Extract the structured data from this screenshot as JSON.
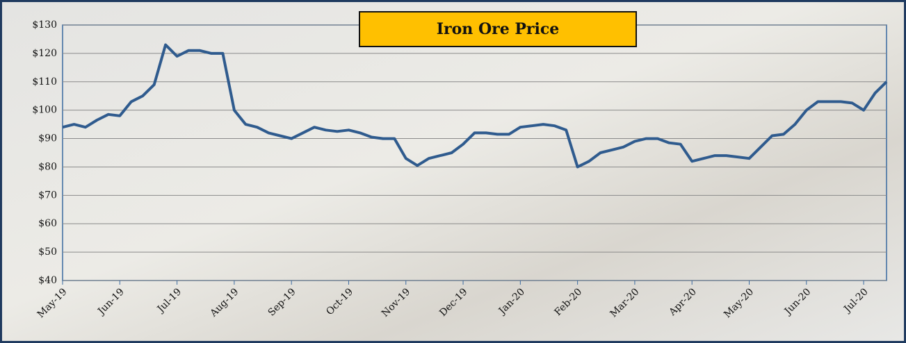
{
  "chart_data": {
    "type": "line",
    "title": "Iron Ore Price",
    "categories": [
      "May-19",
      null,
      null,
      null,
      null,
      "Jun-19",
      null,
      null,
      null,
      null,
      "Jul-19",
      null,
      null,
      null,
      null,
      "Aug-19",
      null,
      null,
      null,
      null,
      "Sep-19",
      null,
      null,
      null,
      null,
      "Oct-19",
      null,
      null,
      null,
      null,
      "Nov-19",
      null,
      null,
      null,
      null,
      "Dec-19",
      null,
      null,
      null,
      null,
      "Jan-20",
      null,
      null,
      null,
      null,
      "Feb-20",
      null,
      null,
      null,
      null,
      "Mar-20",
      null,
      null,
      null,
      null,
      "Apr-20",
      null,
      null,
      null,
      null,
      "May-20",
      null,
      null,
      null,
      null,
      "Jun-20",
      null,
      null,
      null,
      null,
      "Jul-20",
      null,
      null
    ],
    "series": [
      {
        "name": "Iron Ore Price",
        "color": "#2f5b8e",
        "values": [
          94,
          95,
          94,
          96.5,
          98.5,
          98,
          103,
          105,
          109,
          123,
          119,
          121,
          121,
          120,
          120,
          100,
          95,
          94,
          92,
          91,
          90,
          92,
          94,
          93,
          92.5,
          93,
          92,
          90.5,
          90,
          90,
          83,
          80.5,
          83,
          84,
          85,
          88,
          92,
          92,
          91.5,
          91.5,
          94,
          94.5,
          95,
          94.5,
          93,
          80,
          82,
          85,
          86,
          87,
          89,
          90,
          90,
          88.5,
          88,
          82,
          83,
          84,
          84,
          83.5,
          83,
          87,
          91,
          91.5,
          95,
          100,
          103,
          103,
          103,
          102.5,
          100,
          106,
          110
        ]
      }
    ],
    "ylim": [
      40,
      130
    ],
    "yticks": [
      {
        "value": 40,
        "label": "$40"
      },
      {
        "value": 50,
        "label": "$50"
      },
      {
        "value": 60,
        "label": "$60"
      },
      {
        "value": 70,
        "label": "$70"
      },
      {
        "value": 80,
        "label": "$80"
      },
      {
        "value": 90,
        "label": "$90"
      },
      {
        "value": 100,
        "label": "$100"
      },
      {
        "value": 110,
        "label": "$110"
      },
      {
        "value": 120,
        "label": "$120"
      },
      {
        "value": 130,
        "label": "$130"
      }
    ],
    "grid": true
  }
}
